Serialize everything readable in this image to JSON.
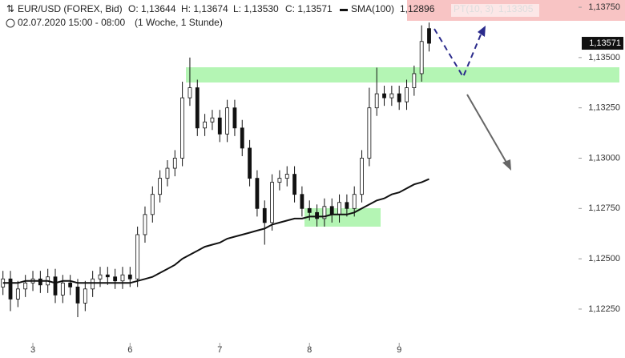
{
  "chart_data": {
    "type": "candlestick",
    "header": {
      "instrument": "EUR/USD (FOREX, Bid)",
      "open": "O: 1,13644",
      "high": "H: 1,13674",
      "low": "L: 1,13530",
      "close": "C: 1,13571",
      "sma_name": "SMA(100)",
      "sma_value": "1,12896",
      "pt_name": "PT(10, 3)",
      "pt_value": "1,13305",
      "period": "02.07.2020 15:00 - 08:00",
      "interval": "(1 Woche, 1 Stunde)"
    },
    "categories": [
      null,
      null,
      null,
      null,
      "3",
      null,
      null,
      null,
      null,
      null,
      null,
      null,
      null,
      null,
      null,
      null,
      null,
      "6",
      null,
      null,
      null,
      null,
      null,
      null,
      null,
      null,
      null,
      null,
      null,
      "7",
      null,
      null,
      null,
      null,
      null,
      null,
      null,
      null,
      null,
      null,
      null,
      "8",
      null,
      null,
      null,
      null,
      null,
      null,
      null,
      null,
      null,
      null,
      null,
      "9",
      null,
      null,
      null,
      null
    ],
    "open": [
      1.1236,
      1.124,
      1.123,
      1.1235,
      1.1238,
      1.124,
      1.1237,
      1.1241,
      1.1232,
      1.1238,
      1.1236,
      1.1228,
      1.1235,
      1.124,
      1.1242,
      1.1241,
      1.1239,
      1.1242,
      1.124,
      1.1262,
      1.1272,
      1.1282,
      1.129,
      1.1295,
      1.13,
      1.133,
      1.1335,
      1.1315,
      1.1318,
      1.132,
      1.1312,
      1.1325,
      1.1315,
      1.1305,
      1.129,
      1.1275,
      1.1268,
      1.1288,
      1.129,
      1.1292,
      1.1282,
      1.1275,
      1.1273,
      1.127,
      1.1276,
      1.1272,
      1.1278,
      1.1275,
      1.1282,
      1.13,
      1.1325,
      1.1332,
      1.133,
      1.1332,
      1.1328,
      1.1335,
      1.1342,
      1.13644
    ],
    "high": [
      1.1244,
      1.1244,
      1.1239,
      1.1242,
      1.1244,
      1.1244,
      1.1245,
      1.1245,
      1.1242,
      1.1242,
      1.124,
      1.1239,
      1.1244,
      1.1246,
      1.1246,
      1.1245,
      1.1246,
      1.1246,
      1.1266,
      1.1276,
      1.1286,
      1.1294,
      1.1299,
      1.1304,
      1.1338,
      1.135,
      1.1339,
      1.1322,
      1.1324,
      1.1324,
      1.1329,
      1.1329,
      1.1319,
      1.1309,
      1.1294,
      1.1279,
      1.1292,
      1.1294,
      1.1296,
      1.1296,
      1.1286,
      1.1279,
      1.1277,
      1.128,
      1.128,
      1.1282,
      1.1282,
      1.1286,
      1.1304,
      1.1335,
      1.1345,
      1.1336,
      1.1336,
      1.1336,
      1.1339,
      1.1346,
      1.1366,
      1.13674
    ],
    "low": [
      1.1232,
      1.1224,
      1.1226,
      1.1231,
      1.1234,
      1.1233,
      1.1233,
      1.1228,
      1.1228,
      1.1232,
      1.1221,
      1.1224,
      1.1231,
      1.1236,
      1.1237,
      1.1235,
      1.1235,
      1.1236,
      1.1236,
      1.1258,
      1.1268,
      1.1278,
      1.1286,
      1.1291,
      1.1296,
      1.1326,
      1.1311,
      1.1311,
      1.1314,
      1.1308,
      1.1308,
      1.1311,
      1.1301,
      1.1286,
      1.1271,
      1.1257,
      1.1264,
      1.1284,
      1.1286,
      1.1278,
      1.1271,
      1.1269,
      1.1266,
      1.1266,
      1.1268,
      1.1268,
      1.1271,
      1.1271,
      1.1278,
      1.1296,
      1.1321,
      1.1326,
      1.1326,
      1.1324,
      1.1324,
      1.1331,
      1.1338,
      1.1353
    ],
    "close": [
      1.124,
      1.123,
      1.1235,
      1.1238,
      1.124,
      1.1237,
      1.1241,
      1.1232,
      1.1238,
      1.1236,
      1.1228,
      1.1235,
      1.124,
      1.1242,
      1.1241,
      1.1239,
      1.1242,
      1.124,
      1.1262,
      1.1272,
      1.1282,
      1.129,
      1.1295,
      1.13,
      1.133,
      1.1335,
      1.1315,
      1.1318,
      1.132,
      1.1312,
      1.1325,
      1.1315,
      1.1305,
      1.129,
      1.1275,
      1.1268,
      1.1288,
      1.129,
      1.1292,
      1.1282,
      1.1275,
      1.1273,
      1.127,
      1.1276,
      1.1272,
      1.1278,
      1.1275,
      1.1282,
      1.13,
      1.1325,
      1.1332,
      1.133,
      1.1332,
      1.1328,
      1.1335,
      1.1342,
      1.1358,
      1.13571
    ],
    "sma": [
      1.1238,
      1.1238,
      1.1238,
      1.1239,
      1.1239,
      1.1239,
      1.1239,
      1.1238,
      1.1239,
      1.1239,
      1.1238,
      1.1238,
      1.1238,
      1.1238,
      1.1238,
      1.1238,
      1.1238,
      1.1238,
      1.1239,
      1.124,
      1.1241,
      1.1243,
      1.1245,
      1.1247,
      1.125,
      1.1252,
      1.1254,
      1.1256,
      1.1257,
      1.1258,
      1.126,
      1.1261,
      1.1262,
      1.1263,
      1.1264,
      1.1265,
      1.1267,
      1.1268,
      1.1269,
      1.127,
      1.127,
      1.1271,
      1.1271,
      1.1271,
      1.1272,
      1.1272,
      1.1272,
      1.1273,
      1.1275,
      1.1277,
      1.1279,
      1.128,
      1.1282,
      1.1283,
      1.1285,
      1.1287,
      1.1288,
      1.12896
    ],
    "up_color": "#ffffff",
    "down_color": "#111111",
    "sma_color": "#111111",
    "ylim": [
      1.12007,
      1.13786
    ],
    "yticks": [
      {
        "value": 1.1375,
        "label": "1,13750"
      },
      {
        "value": 1.135,
        "label": "1,13500"
      },
      {
        "value": 1.1325,
        "label": "1,13250"
      },
      {
        "value": 1.13,
        "label": "1,13000"
      },
      {
        "value": 1.1275,
        "label": "1,12750"
      },
      {
        "value": 1.125,
        "label": "1,12500"
      },
      {
        "value": 1.1225,
        "label": "1,12250"
      }
    ],
    "last_price": {
      "value": 1.13571,
      "label": "1,13571"
    }
  }
}
